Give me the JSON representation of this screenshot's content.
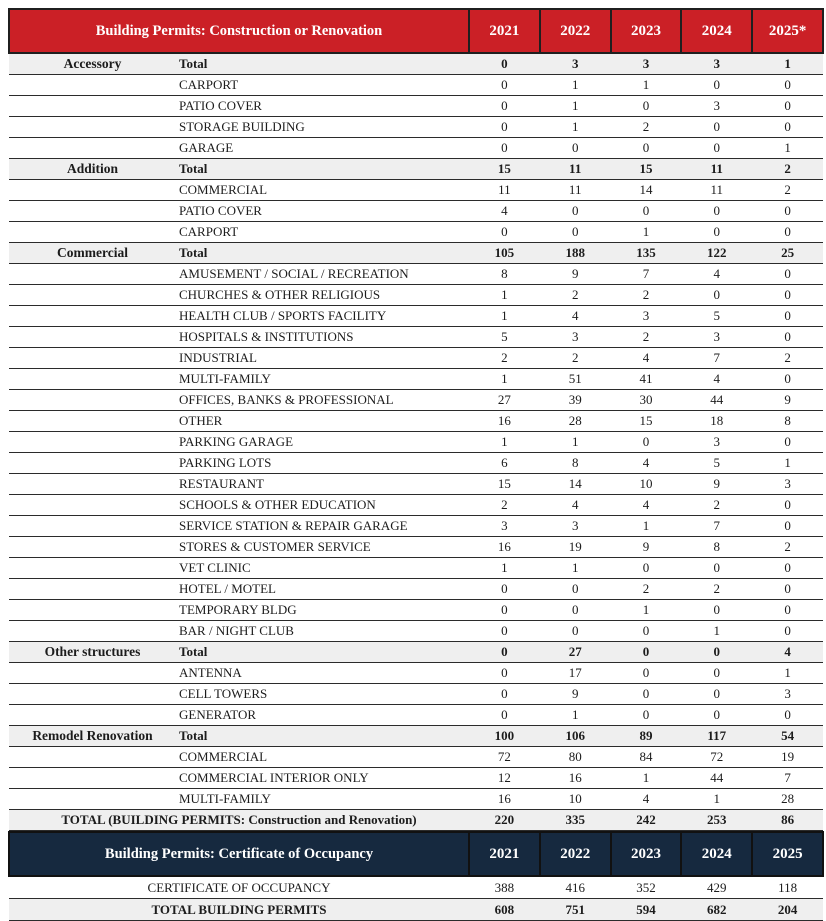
{
  "colors": {
    "header_red": "#cb2026",
    "header_navy": "#16293f",
    "total_row_bg": "#efefef",
    "line": "#2b2b2b"
  },
  "table1": {
    "title": "Building Permits: Construction or Renovation",
    "years": [
      "2021",
      "2022",
      "2023",
      "2024",
      "2025*"
    ],
    "total_label": "Total",
    "sections": [
      {
        "category": "Accessory",
        "total": [
          0,
          3,
          3,
          3,
          1
        ],
        "items": [
          {
            "label": "CARPORT",
            "values": [
              0,
              1,
              1,
              0,
              0
            ]
          },
          {
            "label": "PATIO COVER",
            "values": [
              0,
              1,
              0,
              3,
              0
            ]
          },
          {
            "label": "STORAGE BUILDING",
            "values": [
              0,
              1,
              2,
              0,
              0
            ]
          },
          {
            "label": "GARAGE",
            "values": [
              0,
              0,
              0,
              0,
              1
            ]
          }
        ]
      },
      {
        "category": "Addition",
        "total": [
          15,
          11,
          15,
          11,
          2
        ],
        "items": [
          {
            "label": "COMMERCIAL",
            "values": [
              11,
              11,
              14,
              11,
              2
            ]
          },
          {
            "label": "PATIO COVER",
            "values": [
              4,
              0,
              0,
              0,
              0
            ]
          },
          {
            "label": "CARPORT",
            "values": [
              0,
              0,
              1,
              0,
              0
            ]
          }
        ]
      },
      {
        "category": "Commercial",
        "total": [
          105,
          188,
          135,
          122,
          25
        ],
        "items": [
          {
            "label": "AMUSEMENT / SOCIAL / RECREATION",
            "values": [
              8,
              9,
              7,
              4,
              0
            ]
          },
          {
            "label": "CHURCHES & OTHER RELIGIOUS",
            "values": [
              1,
              2,
              2,
              0,
              0
            ]
          },
          {
            "label": "HEALTH CLUB / SPORTS FACILITY",
            "values": [
              1,
              4,
              3,
              5,
              0
            ]
          },
          {
            "label": "HOSPITALS & INSTITUTIONS",
            "values": [
              5,
              3,
              2,
              3,
              0
            ]
          },
          {
            "label": "INDUSTRIAL",
            "values": [
              2,
              2,
              4,
              7,
              2
            ]
          },
          {
            "label": "MULTI-FAMILY",
            "values": [
              1,
              51,
              41,
              4,
              0
            ]
          },
          {
            "label": "OFFICES, BANKS & PROFESSIONAL",
            "values": [
              27,
              39,
              30,
              44,
              9
            ]
          },
          {
            "label": "OTHER",
            "values": [
              16,
              28,
              15,
              18,
              8
            ]
          },
          {
            "label": "PARKING GARAGE",
            "values": [
              1,
              1,
              0,
              3,
              0
            ]
          },
          {
            "label": "PARKING LOTS",
            "values": [
              6,
              8,
              4,
              5,
              1
            ]
          },
          {
            "label": "RESTAURANT",
            "values": [
              15,
              14,
              10,
              9,
              3
            ]
          },
          {
            "label": "SCHOOLS & OTHER EDUCATION",
            "values": [
              2,
              4,
              4,
              2,
              0
            ]
          },
          {
            "label": "SERVICE STATION & REPAIR GARAGE",
            "values": [
              3,
              3,
              1,
              7,
              0
            ]
          },
          {
            "label": "STORES & CUSTOMER SERVICE",
            "values": [
              16,
              19,
              9,
              8,
              2
            ]
          },
          {
            "label": "VET CLINIC",
            "values": [
              1,
              1,
              0,
              0,
              0
            ]
          },
          {
            "label": "HOTEL / MOTEL",
            "values": [
              0,
              0,
              2,
              2,
              0
            ]
          },
          {
            "label": "TEMPORARY BLDG",
            "values": [
              0,
              0,
              1,
              0,
              0
            ]
          },
          {
            "label": "BAR / NIGHT CLUB",
            "values": [
              0,
              0,
              0,
              1,
              0
            ]
          }
        ]
      },
      {
        "category": "Other structures",
        "total": [
          0,
          27,
          0,
          0,
          4
        ],
        "items": [
          {
            "label": "ANTENNA",
            "values": [
              0,
              17,
              0,
              0,
              1
            ]
          },
          {
            "label": "CELL TOWERS",
            "values": [
              0,
              9,
              0,
              0,
              3
            ]
          },
          {
            "label": "GENERATOR",
            "values": [
              0,
              1,
              0,
              0,
              0
            ]
          }
        ]
      },
      {
        "category": "Remodel Renovation",
        "total": [
          100,
          106,
          89,
          117,
          54
        ],
        "items": [
          {
            "label": "COMMERCIAL",
            "values": [
              72,
              80,
              84,
              72,
              19
            ]
          },
          {
            "label": "COMMERCIAL INTERIOR ONLY",
            "values": [
              12,
              16,
              1,
              44,
              7
            ]
          },
          {
            "label": "MULTI-FAMILY",
            "values": [
              16,
              10,
              4,
              1,
              28
            ]
          }
        ]
      }
    ],
    "total_row": {
      "label": "TOTAL (BUILDING PERMITS:  Construction and Renovation)",
      "values": [
        220,
        335,
        242,
        253,
        86
      ]
    }
  },
  "table2": {
    "title": "Building Permits: Certificate of Occupancy",
    "years": [
      "2021",
      "2022",
      "2023",
      "2024",
      "2025"
    ],
    "rows": [
      {
        "label": "CERTIFICATE OF OCCUPANCY",
        "values": [
          388,
          416,
          352,
          429,
          118
        ]
      },
      {
        "label": "TOTAL BUILDING PERMITS",
        "values": [
          608,
          751,
          594,
          682,
          204
        ]
      }
    ]
  }
}
